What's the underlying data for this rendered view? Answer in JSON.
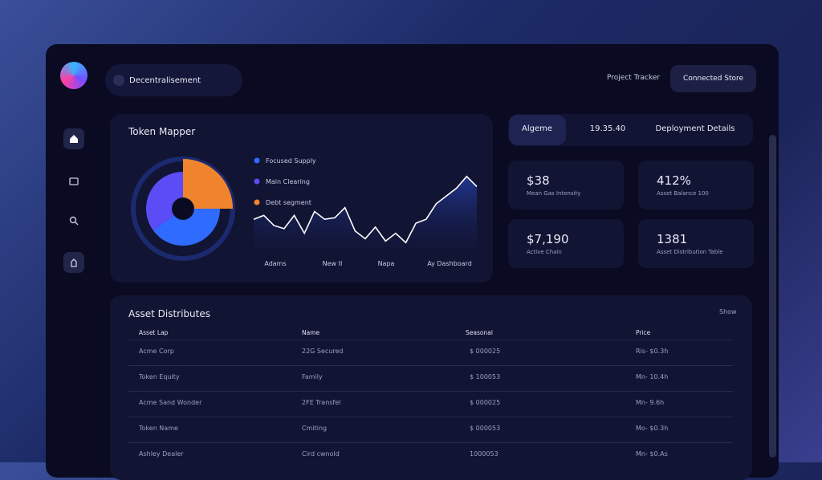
{
  "header": {
    "search": "Decentralisement",
    "link": "Project Tracker",
    "button": "Connected Store"
  },
  "token_chart": {
    "title": "Token Mapper",
    "legend": [
      {
        "name": "Focused Supply",
        "color": "#2f6bff"
      },
      {
        "name": "Main Clearing",
        "color": "#5b4cf5"
      },
      {
        "name": "Debt segment",
        "color": "#f0842c"
      }
    ],
    "donut_values": [
      40,
      35,
      25
    ],
    "x_labels": [
      "Adams",
      "New II",
      "Napa",
      "Ay Dashboard"
    ],
    "line_values": [
      40,
      45,
      32,
      28,
      45,
      22,
      50,
      40,
      42,
      55,
      25,
      15,
      30,
      12,
      22,
      10,
      35,
      40,
      60,
      70,
      80,
      95,
      82
    ]
  },
  "tabs": [
    "Algeme",
    "19.35.40",
    "Deployment Details"
  ],
  "stats": [
    {
      "value": "$38",
      "label": "Mean Gas Intensity"
    },
    {
      "value": "412%",
      "label": "Asset Balance 100"
    },
    {
      "value": "$7,190",
      "label": "Active Chain"
    },
    {
      "value": "1381",
      "label": "Asset Distribution Table"
    }
  ],
  "table": {
    "title": "Asset Distributes",
    "action": "Show",
    "headers": [
      "Asset Lap",
      "Name",
      "Seasonal",
      "Price"
    ],
    "rows": [
      [
        "Acme Corp",
        "22G Secured",
        "$ 000025",
        "Ris- $0.3h"
      ],
      [
        "Token Equity",
        "Family",
        "$ 100053",
        "Mn- 10.4h"
      ],
      [
        "Acme Sand Wonder",
        "2FE Transfel",
        "$ 000025",
        "Mn- 9.6h"
      ],
      [
        "Token Name",
        "Cmiting",
        "$ 000053",
        "Mo- $0.3h"
      ],
      [
        "Ashley Dealer",
        "Cird cwnold",
        "1000053",
        "Mn- $0.As"
      ]
    ]
  }
}
